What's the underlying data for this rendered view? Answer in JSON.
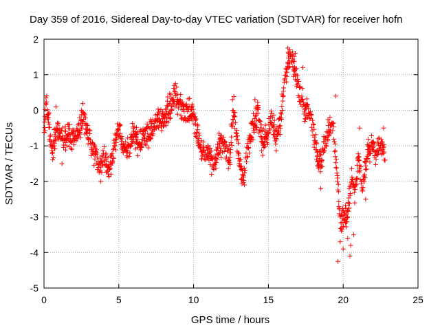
{
  "chart_data": {
    "type": "scatter",
    "title": "Day 359 of 2016, Sidereal Day-to-day VTEC variation (SDTVAR) for receiver hofn",
    "xlabel": "GPS time / hours",
    "ylabel": "SDTVAR / TECUs",
    "xlim": [
      0,
      25
    ],
    "ylim": [
      -5,
      2
    ],
    "xticks": [
      0,
      5,
      10,
      15,
      20,
      25
    ],
    "yticks": [
      -5,
      -4,
      -3,
      -2,
      -1,
      0,
      1,
      2
    ],
    "grid": true,
    "marker": "+",
    "color": "#ff0000",
    "trace": [
      [
        0.0,
        -0.5
      ],
      [
        0.15,
        0.1
      ],
      [
        0.3,
        -0.2
      ],
      [
        0.5,
        -1.1
      ],
      [
        0.7,
        -0.9
      ],
      [
        1.0,
        -0.5
      ],
      [
        1.3,
        -0.9
      ],
      [
        1.6,
        -0.6
      ],
      [
        2.0,
        -0.8
      ],
      [
        2.3,
        -0.6
      ],
      [
        2.6,
        -0.2
      ],
      [
        2.9,
        -0.5
      ],
      [
        3.2,
        -1.0
      ],
      [
        3.5,
        -1.3
      ],
      [
        3.8,
        -1.7
      ],
      [
        4.0,
        -1.2
      ],
      [
        4.3,
        -1.6
      ],
      [
        4.6,
        -1.3
      ],
      [
        5.0,
        -0.5
      ],
      [
        5.3,
        -1.0
      ],
      [
        5.7,
        -1.1
      ],
      [
        6.0,
        -0.6
      ],
      [
        6.4,
        -1.0
      ],
      [
        6.8,
        -0.7
      ],
      [
        7.2,
        -0.6
      ],
      [
        7.6,
        -0.3
      ],
      [
        8.0,
        -0.2
      ],
      [
        8.4,
        0.1
      ],
      [
        8.8,
        0.4
      ],
      [
        9.1,
        0.1
      ],
      [
        9.5,
        -0.1
      ],
      [
        9.9,
        0.0
      ],
      [
        10.2,
        -0.5
      ],
      [
        10.6,
        -1.3
      ],
      [
        11.0,
        -1.1
      ],
      [
        11.3,
        -1.6
      ],
      [
        11.7,
        -1.0
      ],
      [
        12.0,
        -0.9
      ],
      [
        12.4,
        -1.4
      ],
      [
        12.7,
        0.1
      ],
      [
        13.0,
        -1.2
      ],
      [
        13.3,
        -1.9
      ],
      [
        13.6,
        -1.1
      ],
      [
        14.0,
        -0.4
      ],
      [
        14.3,
        -0.1
      ],
      [
        14.6,
        -0.9
      ],
      [
        14.9,
        -0.7
      ],
      [
        15.2,
        -0.2
      ],
      [
        15.5,
        -0.8
      ],
      [
        15.8,
        -0.3
      ],
      [
        16.0,
        0.5
      ],
      [
        16.3,
        1.2
      ],
      [
        16.5,
        1.6
      ],
      [
        16.7,
        1.3
      ],
      [
        16.9,
        0.8
      ],
      [
        17.2,
        0.3
      ],
      [
        17.5,
        0.0
      ],
      [
        17.8,
        -0.2
      ],
      [
        18.1,
        -0.7
      ],
      [
        18.4,
        -1.5
      ],
      [
        18.7,
        -1.1
      ],
      [
        19.0,
        -0.6
      ],
      [
        19.3,
        -0.4
      ],
      [
        19.6,
        -1.9
      ],
      [
        19.8,
        -3.2
      ],
      [
        20.0,
        -2.9
      ],
      [
        20.2,
        -3.1
      ],
      [
        20.4,
        -2.6
      ],
      [
        20.6,
        -1.9
      ],
      [
        20.8,
        -2.3
      ],
      [
        21.0,
        -1.4
      ],
      [
        21.3,
        -2.1
      ],
      [
        21.6,
        -1.3
      ],
      [
        21.9,
        -0.9
      ],
      [
        22.2,
        -1.2
      ],
      [
        22.5,
        -0.9
      ],
      [
        22.8,
        -1.4
      ]
    ],
    "excursions": [
      [
        0.3,
        -0.1
      ],
      [
        0.8,
        0.1
      ],
      [
        1.2,
        -1.5
      ],
      [
        2.5,
        0.0
      ],
      [
        3.8,
        -2.0
      ],
      [
        8.7,
        0.7
      ],
      [
        11.2,
        -1.8
      ],
      [
        12.6,
        0.3
      ],
      [
        13.4,
        -2.1
      ],
      [
        14.1,
        0.3
      ],
      [
        16.3,
        1.75
      ],
      [
        16.8,
        1.6
      ],
      [
        17.3,
        1.2
      ],
      [
        18.5,
        -2.2
      ],
      [
        19.5,
        0.4
      ],
      [
        19.65,
        -4.25
      ],
      [
        19.8,
        -3.7
      ],
      [
        20.0,
        -3.9
      ],
      [
        20.3,
        -3.6
      ],
      [
        20.45,
        -4.1
      ],
      [
        20.5,
        -3.8
      ],
      [
        20.7,
        -3.5
      ],
      [
        21.1,
        -0.5
      ],
      [
        21.5,
        -2.5
      ],
      [
        22.7,
        -0.5
      ]
    ]
  }
}
